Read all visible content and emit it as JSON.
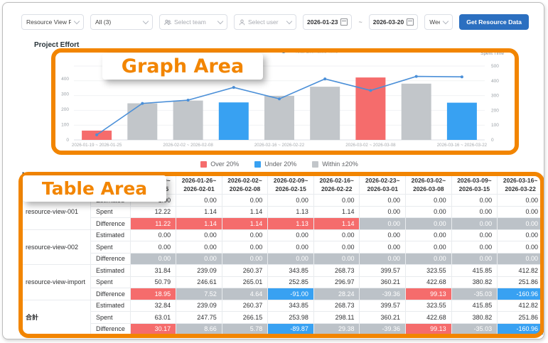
{
  "colors": {
    "annotation_orange": "#f28500",
    "over": "#f56c6c",
    "under": "#38a1f2",
    "within": "#c2c6ca",
    "cell_within": "#bcc2c8",
    "line_blue": "#4a8fd8",
    "button_blue": "#2b6fc0",
    "axis_text": "#9aa0a6"
  },
  "toolbar": {
    "project_select": "Resource View PG",
    "scope_select": "All (3)",
    "team_select": "Select team",
    "user_select": "Select user",
    "date_from": "2026-01-23",
    "date_separator": "~",
    "date_to": "2026-03-20",
    "period_select": "Week",
    "get_data_button": "Get Resource Data"
  },
  "annotations": {
    "graph_label": "Graph Area",
    "table_label": "Table Area"
  },
  "graph": {
    "section_title": "Project Effort",
    "line_legend": "Total Estimated Time",
    "legend": [
      {
        "label": "Over 20%",
        "key": "over"
      },
      {
        "label": "Under 20%",
        "key": "under"
      },
      {
        "label": "Within ±20%",
        "key": "within"
      }
    ]
  },
  "chart_data": {
    "type": "bar+line",
    "categories": [
      "2026-01-19 ~ 2026-01-25",
      "2026-01-26 ~ 2026-02-01",
      "2026-02-02 ~ 2026-02-08",
      "2026-02-09 ~ 2026-02-15",
      "2026-02-16 ~ 2026-02-22",
      "2026-02-23 ~ 2026-03-01",
      "2026-03-02 ~ 2026-03-08",
      "2026-03-09 ~ 2026-03-15",
      "2026-03-16 ~ 2026-03-22"
    ],
    "x_label_indices": [
      0,
      2,
      4,
      6,
      8
    ],
    "series": [
      {
        "name": "Spent Time",
        "type": "bar",
        "axis": "right",
        "values": [
          63.01,
          247.75,
          266.15,
          253.98,
          298.11,
          360.21,
          422.68,
          380.82,
          251.86
        ],
        "status": [
          "over",
          "within",
          "within",
          "under",
          "within",
          "within",
          "over",
          "within",
          "under"
        ]
      },
      {
        "name": "Total Estimated Time",
        "type": "line",
        "axis": "left",
        "values": [
          32.84,
          239.09,
          260.37,
          343.85,
          268.73,
          399.57,
          323.55,
          415.85,
          412.82
        ]
      }
    ],
    "left_axis": {
      "min": 0,
      "max": 400,
      "step": 100
    },
    "right_axis": {
      "min": 0,
      "max": 500,
      "step": 100,
      "title": "Spent Time"
    },
    "grid": true,
    "legend_position": "top-center"
  },
  "table": {
    "corner_title": "Member Effort",
    "metric_labels": [
      "Estimated",
      "Spent",
      "Difference"
    ],
    "columns": [
      "2026-01-19~\n2026-01-25",
      "2026-01-26~\n2026-02-01",
      "2026-02-02~\n2026-02-08",
      "2026-02-09~\n2026-02-15",
      "2026-02-16~\n2026-02-22",
      "2026-02-23~\n2026-03-01",
      "2026-03-02~\n2026-03-08",
      "2026-03-09~\n2026-03-15",
      "2026-03-16~\n2026-03-22"
    ],
    "groups": [
      {
        "name": "resource-view-001",
        "bold": false,
        "estimated": [
          "1.00",
          "0.00",
          "0.00",
          "0.00",
          "0.00",
          "0.00",
          "0.00",
          "0.00",
          "0.00"
        ],
        "spent": [
          "12.22",
          "1.14",
          "1.14",
          "1.13",
          "1.14",
          "0.00",
          "0.00",
          "0.00",
          "0.00"
        ],
        "difference": [
          "11.22",
          "1.14",
          "1.14",
          "1.13",
          "1.14",
          "0.00",
          "0.00",
          "0.00",
          "0.00"
        ],
        "diff_status": [
          "over",
          "over",
          "over",
          "over",
          "over",
          "within",
          "within",
          "within",
          "within"
        ]
      },
      {
        "name": "resource-view-002",
        "bold": false,
        "estimated": [
          "0.00",
          "0.00",
          "0.00",
          "0.00",
          "0.00",
          "0.00",
          "0.00",
          "0.00",
          "0.00"
        ],
        "spent": [
          "0.00",
          "0.00",
          "0.00",
          "0.00",
          "0.00",
          "0.00",
          "0.00",
          "0.00",
          "0.00"
        ],
        "difference": [
          "0.00",
          "0.00",
          "0.00",
          "0.00",
          "0.00",
          "0.00",
          "0.00",
          "0.00",
          "0.00"
        ],
        "diff_status": [
          "within",
          "within",
          "within",
          "within",
          "within",
          "within",
          "within",
          "within",
          "within"
        ]
      },
      {
        "name": "resource-view-import",
        "bold": false,
        "estimated": [
          "31.84",
          "239.09",
          "260.37",
          "343.85",
          "268.73",
          "399.57",
          "323.55",
          "415.85",
          "412.82"
        ],
        "spent": [
          "50.79",
          "246.61",
          "265.01",
          "252.85",
          "296.97",
          "360.21",
          "422.68",
          "380.82",
          "251.86"
        ],
        "difference": [
          "18.95",
          "7.52",
          "4.64",
          "-91.00",
          "28.24",
          "-39.36",
          "99.13",
          "-35.03",
          "-160.96"
        ],
        "diff_status": [
          "over",
          "within",
          "within",
          "under",
          "within",
          "within",
          "over",
          "within",
          "under"
        ]
      },
      {
        "name": "合計",
        "bold": true,
        "estimated": [
          "32.84",
          "239.09",
          "260.37",
          "343.85",
          "268.73",
          "399.57",
          "323.55",
          "415.85",
          "412.82"
        ],
        "spent": [
          "63.01",
          "247.75",
          "266.15",
          "253.98",
          "298.11",
          "360.21",
          "422.68",
          "380.82",
          "251.86"
        ],
        "difference": [
          "30.17",
          "8.66",
          "5.78",
          "-89.87",
          "29.38",
          "-39.36",
          "99.13",
          "-35.03",
          "-160.96"
        ],
        "diff_status": [
          "over",
          "within",
          "within",
          "under",
          "within",
          "within",
          "over",
          "within",
          "under"
        ]
      }
    ]
  }
}
